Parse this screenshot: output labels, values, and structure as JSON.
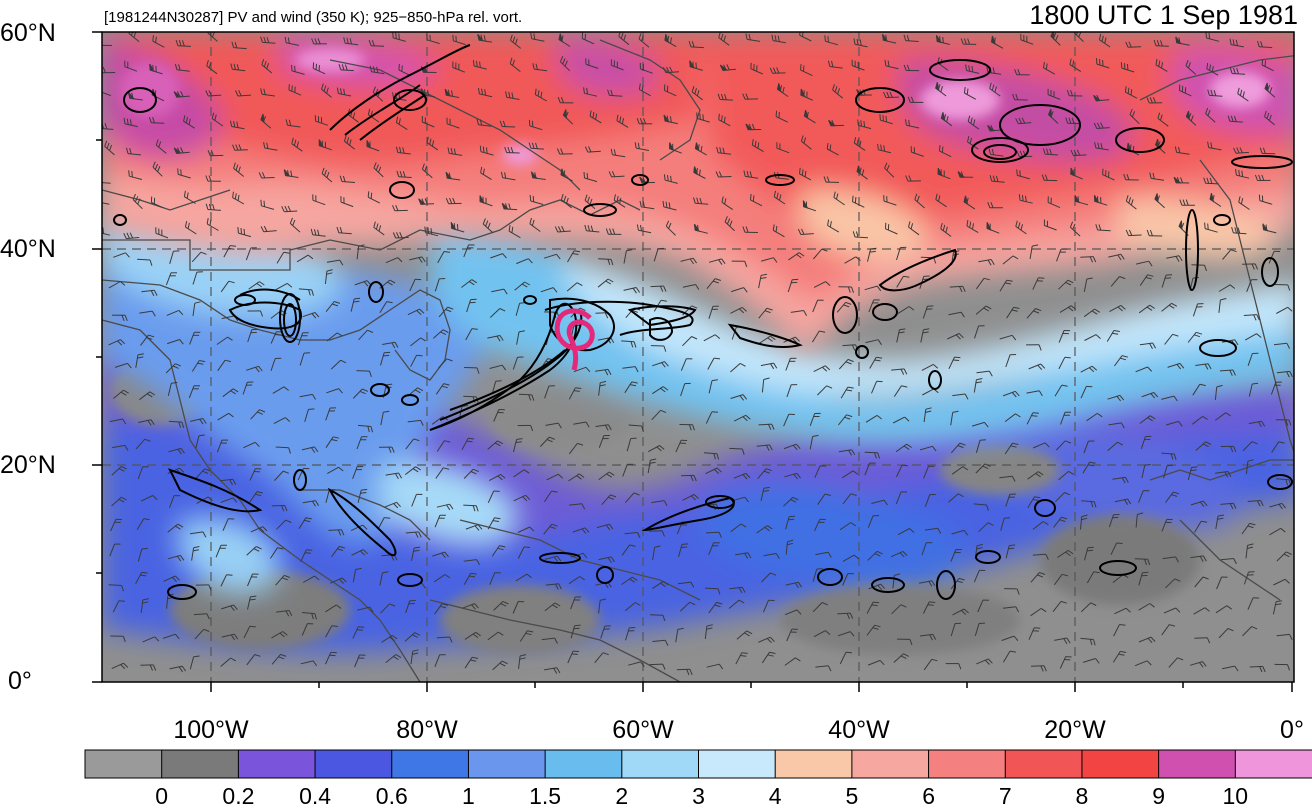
{
  "header": {
    "left_title": "[1981244N30287] PV and wind (350 K); 925−850-hPa rel. vort.",
    "right_title": "1800 UTC 1 Sep 1981"
  },
  "map": {
    "lat_labels": [
      "60°N",
      "40°N",
      "20°N",
      "0°"
    ],
    "lon_labels": [
      "100°W",
      "80°W",
      "60°W",
      "40°W",
      "20°W",
      "0°"
    ],
    "extent": {
      "lon_min": -110,
      "lon_max": 2,
      "lat_min": 0,
      "lat_max": 60
    }
  },
  "colorbar": {
    "levels": [
      "0",
      "0.2",
      "0.4",
      "0.6",
      "1",
      "1.5",
      "2",
      "3",
      "4",
      "5",
      "6",
      "7",
      "8",
      "9",
      "10"
    ],
    "colors": [
      "#9a9a9a",
      "#7a7a7a",
      "#7a55dc",
      "#4b57e0",
      "#3f78e6",
      "#6a96ee",
      "#68bcee",
      "#a0d8f7",
      "#c8e8fb",
      "#f9c8a8",
      "#f6a8a0",
      "#f48080",
      "#f25555",
      "#f34444",
      "#d050b0",
      "#ef95dc"
    ]
  },
  "colors": {
    "storm_marker": "#e6287a",
    "coastline": "#4a4a4a",
    "grid": "#555555"
  }
}
